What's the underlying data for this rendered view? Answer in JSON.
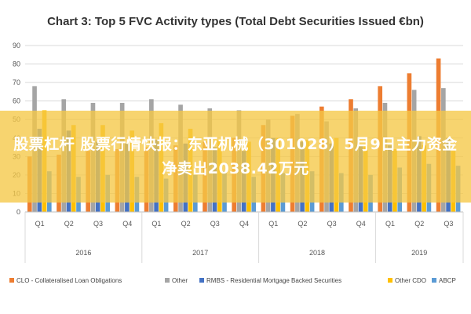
{
  "chart_data": {
    "type": "bar",
    "title": "Chart 3: Top 5 FVC Activity types (Total Debt Securities Issued €bn)",
    "ylim": [
      0,
      90
    ],
    "yticks": [
      0,
      10,
      20,
      30,
      40,
      50,
      60,
      70,
      80,
      90
    ],
    "grid": true,
    "legend_position": "bottom",
    "categories": [
      "Q1",
      "Q2",
      "Q3",
      "Q4",
      "Q1",
      "Q2",
      "Q3",
      "Q4",
      "Q1",
      "Q2",
      "Q3",
      "Q4",
      "Q1",
      "Q2",
      "Q3"
    ],
    "groups": [
      {
        "label": "2016",
        "count": 4
      },
      {
        "label": "2017",
        "count": 4
      },
      {
        "label": "2018",
        "count": 4
      },
      {
        "label": "2019",
        "count": 3
      }
    ],
    "series": [
      {
        "name": "CLO - Collateralised Loan Obligations",
        "color": "#ED7D31",
        "values": [
          30,
          31,
          33,
          34,
          35,
          36,
          38,
          40,
          47,
          52,
          57,
          61,
          68,
          75,
          83
        ]
      },
      {
        "name": "Other",
        "color": "#A5A5A5",
        "values": [
          68,
          61,
          59,
          59,
          61,
          58,
          56,
          55,
          50,
          53,
          49,
          56,
          59,
          66,
          67
        ]
      },
      {
        "name": "RMBS - Residential Mortgage Backed Securities",
        "color": "#4472C4",
        "values": [
          45,
          44,
          38,
          37,
          39,
          37,
          35,
          33,
          40,
          38,
          37,
          36,
          36,
          41,
          40
        ]
      },
      {
        "name": "Other CDO",
        "color": "#FFC000",
        "values": [
          55,
          47,
          47,
          44,
          48,
          45,
          39,
          38,
          40,
          39,
          40,
          36,
          34,
          36,
          33
        ]
      },
      {
        "name": "ABCP",
        "color": "#5B9BD5",
        "values": [
          22,
          19,
          20,
          19,
          18,
          20,
          22,
          19,
          21,
          22,
          21,
          20,
          24,
          26,
          25
        ]
      }
    ]
  },
  "banner": {
    "text": "股票杠杆 股票行情快报：东亚机械（301028）5月9日主力资金净卖出2038.42万元"
  }
}
